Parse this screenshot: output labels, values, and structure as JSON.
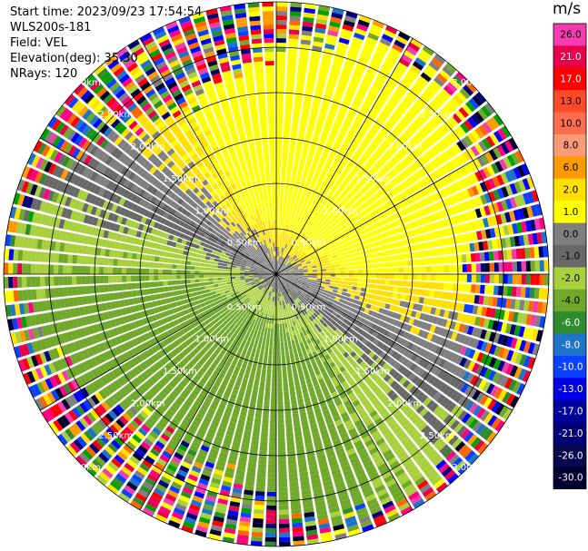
{
  "header": {
    "start_time": "Start time: 2023/09/23 17:54:54",
    "station": "WLS200s-181",
    "field": "Field: VEL",
    "elevation": "Elevation(deg): 35.30",
    "nrays": "NRays: 120"
  },
  "chart_data": {
    "type": "heatmap",
    "subtype": "ppi-polar",
    "field": "VEL",
    "unit": "m/s",
    "nrays": 120,
    "range_rings_km": [
      0.5,
      1.0,
      1.5,
      2.0,
      2.5,
      3.0
    ],
    "range_ring_labels": [
      "0.50km",
      "1.00km",
      "1.50km",
      "2.00km",
      "2.50km",
      "3.00km"
    ],
    "spokes_deg": [
      0,
      30,
      60,
      90,
      120,
      150,
      180,
      210,
      240,
      270,
      300,
      330
    ],
    "colorbar": {
      "ticks": [
        "26.0",
        "21.0",
        "17.0",
        "13.0",
        "10.0",
        "8.0",
        "6.0",
        "2.0",
        "1.0",
        "0.0",
        "-1.0",
        "-2.0",
        "-4.0",
        "-6.0",
        "-8.0",
        "-10.0",
        "-13.0",
        "-17.0",
        "-21.0",
        "-26.0",
        "-30.0"
      ],
      "colors": [
        "#f43cb0",
        "#e8004a",
        "#ff0000",
        "#ff4a2a",
        "#ff6e4c",
        "#ff9a78",
        "#ff9a00",
        "#ffe000",
        "#ffff00",
        "#7f7f7f",
        "#686868",
        "#a8d03c",
        "#70a82a",
        "#2e8b2e",
        "#1e74c8",
        "#0a40ff",
        "#0000e8",
        "#00009c",
        "#000078",
        "#080850",
        "#000030"
      ]
    }
  }
}
